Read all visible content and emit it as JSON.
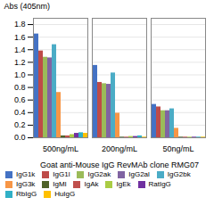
{
  "chart_data": {
    "type": "bar",
    "xlabel": "Goat anti-Mouse IgG RevMAb clone RMG07",
    "ylabel": "Abs (405nm)",
    "categories": [
      "500ng/mL",
      "200ng/mL",
      "50ng/mL"
    ],
    "series": [
      {
        "name": "IgG1k",
        "color": "#4472C4",
        "values": [
          1.65,
          1.15,
          0.53
        ]
      },
      {
        "name": "IgG1l",
        "color": "#BE4B48",
        "values": [
          1.38,
          0.88,
          0.49
        ]
      },
      {
        "name": "IgG2ak",
        "color": "#9BBB59",
        "values": [
          1.28,
          0.86,
          0.43
        ]
      },
      {
        "name": "IgG2al",
        "color": "#8064A2",
        "values": [
          1.27,
          0.85,
          0.43
        ]
      },
      {
        "name": "IgG2bk",
        "color": "#4BACC6",
        "values": [
          1.48,
          1.03,
          0.46
        ]
      },
      {
        "name": "IgG3k",
        "color": "#F79646",
        "values": [
          0.72,
          0.39,
          0.15
        ]
      },
      {
        "name": "IgMl",
        "color": "#4F6228",
        "values": [
          0.03,
          0.01,
          0.01
        ]
      },
      {
        "name": "IgAk",
        "color": "#C0504D",
        "values": [
          0.03,
          0.01,
          0.01
        ]
      },
      {
        "name": "IgEk",
        "color": "#AACC44",
        "values": [
          0.05,
          0.02,
          0.01
        ]
      },
      {
        "name": "RatIgG",
        "color": "#7030A0",
        "values": [
          0.07,
          0.02,
          0.01
        ]
      },
      {
        "name": "RbIgG",
        "color": "#31B0C6",
        "values": [
          0.08,
          0.03,
          0.01
        ]
      },
      {
        "name": "HuIgG",
        "color": "#FFC000",
        "values": [
          0.07,
          0.01,
          0.01
        ]
      }
    ],
    "ylim": [
      0,
      1.9
    ],
    "yticks": [
      {
        "value": 0,
        "label": "0.0"
      },
      0.2,
      0.4,
      0.6,
      0.8,
      {
        "value": 1,
        "label": "1.0"
      },
      1.2,
      1.4,
      1.6,
      1.8
    ],
    "grid": true,
    "legend": "bottom"
  }
}
